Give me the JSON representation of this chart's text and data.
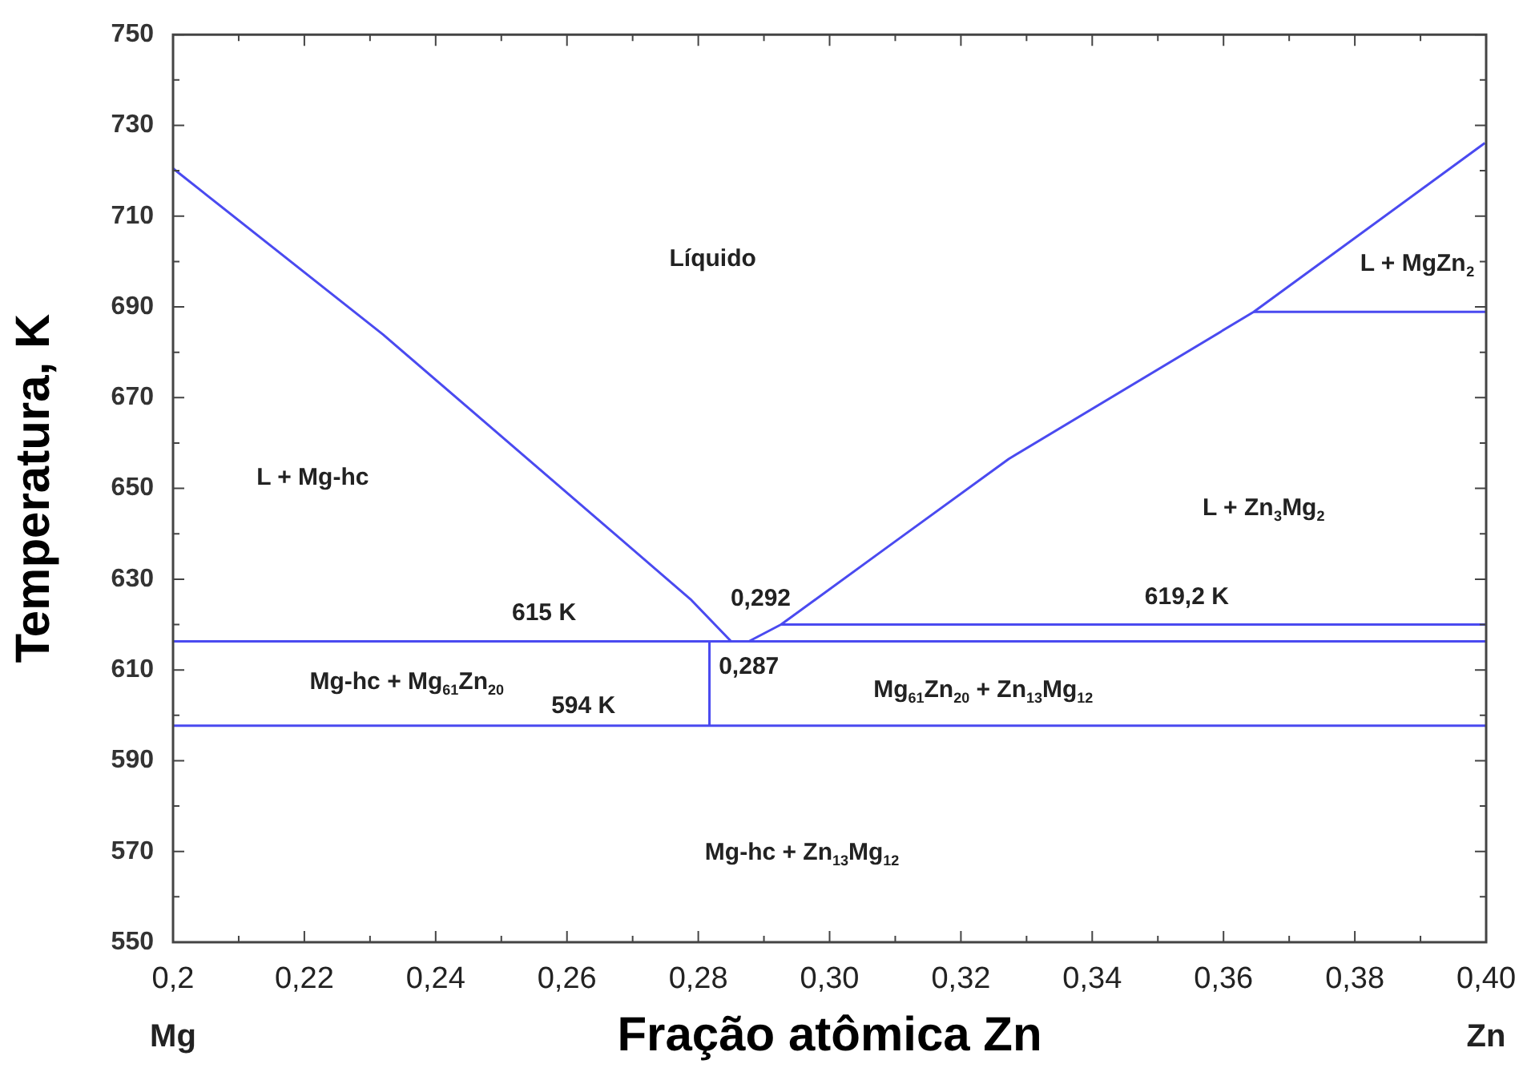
{
  "chart_data": {
    "type": "line",
    "xlabel": "Fração atômica Zn",
    "ylabel": "Temperatura, K",
    "xlim": [
      0.2,
      0.4
    ],
    "ylim": [
      550,
      750
    ],
    "xticks": [
      {
        "value": 0.2,
        "label": "0,2"
      },
      {
        "value": 0.21,
        "label": null
      },
      {
        "value": 0.22,
        "label": "0,22"
      },
      {
        "value": 0.23,
        "label": null
      },
      {
        "value": 0.24,
        "label": "0,24"
      },
      {
        "value": 0.25,
        "label": null
      },
      {
        "value": 0.26,
        "label": "0,26"
      },
      {
        "value": 0.27,
        "label": null
      },
      {
        "value": 0.28,
        "label": "0,28"
      },
      {
        "value": 0.29,
        "label": null
      },
      {
        "value": 0.3,
        "label": "0,30"
      },
      {
        "value": 0.31,
        "label": null
      },
      {
        "value": 0.32,
        "label": "0,32"
      },
      {
        "value": 0.33,
        "label": null
      },
      {
        "value": 0.34,
        "label": "0,34"
      },
      {
        "value": 0.35,
        "label": null
      },
      {
        "value": 0.36,
        "label": "0,36"
      },
      {
        "value": 0.37,
        "label": null
      },
      {
        "value": 0.38,
        "label": "0,38"
      },
      {
        "value": 0.39,
        "label": null
      },
      {
        "value": 0.4,
        "label": "0,40"
      }
    ],
    "yticks": [
      550,
      {
        "value": 560,
        "label": null
      },
      570,
      {
        "value": 580,
        "label": null
      },
      590,
      {
        "value": 600,
        "label": null
      },
      610,
      {
        "value": 620,
        "label": null
      },
      630,
      {
        "value": 640,
        "label": null
      },
      650,
      {
        "value": 660,
        "label": null
      },
      670,
      {
        "value": 680,
        "label": null
      },
      690,
      {
        "value": 700,
        "label": null
      },
      710,
      {
        "value": 720,
        "label": null
      },
      730,
      {
        "value": 740,
        "label": null
      },
      750
    ],
    "grid": false,
    "legend": false,
    "marker": "none",
    "line_style": "solid",
    "series": [
      {
        "color": "#4a4af0",
        "x": [
          0.2,
          0.232,
          0.2667,
          0.2788,
          0.285,
          0.287
        ],
        "values": [
          720.5,
          683.9,
          640.7,
          625.6,
          616.3,
          616.3
        ]
      },
      {
        "color": "#4a4af0",
        "x": [
          0.2877,
          0.2926,
          0.3096,
          0.3273,
          0.3646,
          0.3998
        ],
        "values": [
          616.3,
          620,
          637.9,
          656.5,
          688.9,
          726.1
        ]
      },
      {
        "color": "#4a4af0",
        "x": [
          0.2,
          0.4
        ],
        "values": [
          616.3,
          616.3
        ]
      },
      {
        "color": "#4a4af0",
        "x": [
          0.2926,
          0.4
        ],
        "values": [
          620,
          620
        ]
      },
      {
        "color": "#4a4af0",
        "x": [
          0.2,
          0.4
        ],
        "values": [
          597.7,
          597.7
        ]
      },
      {
        "color": "#4a4af0",
        "x": [
          0.2817,
          0.2817
        ],
        "values": [
          597.7,
          616.3
        ]
      },
      {
        "color": "#4a4af0",
        "x": [
          0.3646,
          0.4
        ],
        "values": [
          688.9,
          688.9
        ]
      }
    ],
    "annotations": [
      "Líquido",
      "L + Mg-hc",
      "L + MgZn$_{2}$",
      "L + Zn$_{3}$Mg$_{2}$",
      "615 K",
      "0,292",
      "619,2 K",
      "0,287",
      "Mg-hc + Mg$_{61}$Zn$_{20}$",
      "594 K",
      "Mg$_{61}$Zn$_{20}$ + Zn$_{13}$Mg$_{12}$",
      "Mg-hc + Zn$_{13}$Mg$_{12}$",
      "Mg",
      "Zn"
    ]
  }
}
